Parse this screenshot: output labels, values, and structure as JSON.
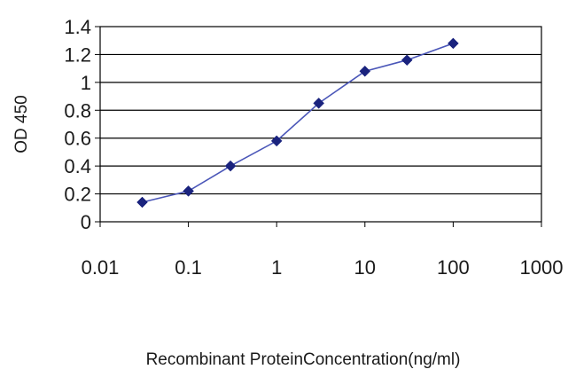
{
  "chart_data": {
    "type": "line",
    "xscale": "log",
    "xlabel": "Recombinant ProteinConcentration(ng/ml)",
    "ylabel": "OD 450",
    "xlim": [
      0.01,
      1000
    ],
    "ylim": [
      0,
      1.4
    ],
    "x_ticks": [
      "0.01",
      "0.1",
      "1",
      "10",
      "100",
      "1000"
    ],
    "y_ticks": [
      "0",
      "0.2",
      "0.4",
      "0.6",
      "0.8",
      "1",
      "1.2",
      "1.4"
    ],
    "grid": "horizontal",
    "legend": "none",
    "series": [
      {
        "x": [
          0.03,
          0.1,
          0.3,
          1,
          3,
          10,
          30,
          100
        ],
        "y": [
          0.14,
          0.22,
          0.4,
          0.58,
          0.85,
          1.08,
          1.16,
          1.28
        ]
      }
    ],
    "colors": {
      "line": "#4a56b8",
      "marker": "#1a237e",
      "grid": "#000000",
      "plot_background": "#ffffff"
    }
  }
}
